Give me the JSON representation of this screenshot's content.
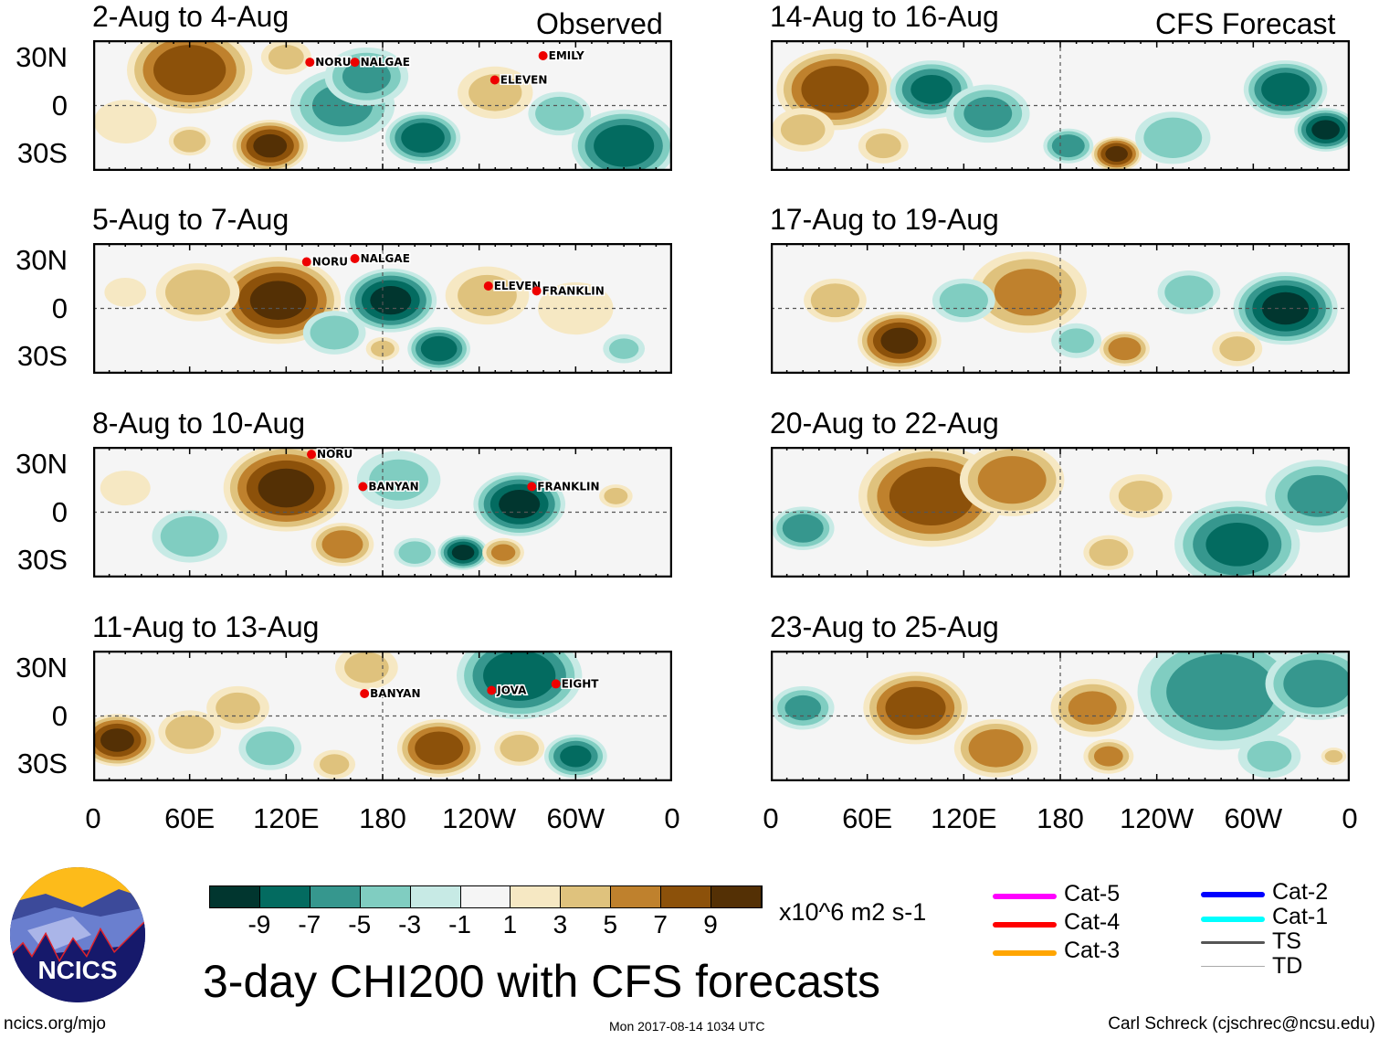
{
  "header": {
    "observed_label": "Observed",
    "forecast_label": "CFS Forecast"
  },
  "lat_labels": [
    "30N",
    "0",
    "30S"
  ],
  "lon_labels": [
    "0",
    "60E",
    "120E",
    "180",
    "120W",
    "60W",
    "0"
  ],
  "panels": [
    {
      "title": "2-Aug to 4-Aug",
      "group": "observed",
      "blobs": [
        [
          60,
          22,
          8,
          30
        ],
        [
          110,
          -25,
          9,
          18
        ],
        [
          60,
          -22,
          4,
          10
        ],
        [
          155,
          0,
          -5,
          25
        ],
        [
          205,
          -20,
          -8,
          18
        ],
        [
          330,
          -25,
          -8,
          25
        ],
        [
          170,
          18,
          -5,
          20
        ],
        [
          250,
          8,
          3,
          18
        ],
        [
          290,
          -5,
          -4,
          15
        ],
        [
          20,
          -10,
          2,
          15
        ],
        [
          120,
          30,
          3,
          12
        ]
      ],
      "storms": [
        {
          "name": "NORU",
          "lon": 137,
          "lat": 28
        },
        {
          "name": "NALGAE",
          "lon": 165,
          "lat": 28
        },
        {
          "name": "EMILY",
          "lon": 282,
          "lat": 32
        },
        {
          "name": "ELEVEN",
          "lon": 252,
          "lat": 17
        }
      ]
    },
    {
      "title": "5-Aug to 7-Aug",
      "group": "observed",
      "blobs": [
        [
          115,
          5,
          9,
          30
        ],
        [
          65,
          10,
          4,
          20
        ],
        [
          185,
          5,
          -9,
          22
        ],
        [
          215,
          -25,
          -8,
          15
        ],
        [
          150,
          -15,
          -4,
          15
        ],
        [
          245,
          8,
          3,
          20
        ],
        [
          300,
          0,
          2,
          18
        ],
        [
          180,
          -25,
          3,
          8
        ],
        [
          20,
          10,
          2,
          10
        ],
        [
          330,
          -25,
          -3,
          10
        ]
      ],
      "storms": [
        {
          "name": "NORU",
          "lon": 135,
          "lat": 30
        },
        {
          "name": "NALGAE",
          "lon": 165,
          "lat": 32
        },
        {
          "name": "ELEVEN",
          "lon": 248,
          "lat": 15
        },
        {
          "name": "FRANKLIN",
          "lon": 278,
          "lat": 12
        }
      ]
    },
    {
      "title": "8-Aug to 10-Aug",
      "group": "observed",
      "blobs": [
        [
          120,
          15,
          9,
          30
        ],
        [
          155,
          -20,
          6,
          15
        ],
        [
          230,
          -25,
          -9,
          12
        ],
        [
          265,
          5,
          -9,
          22
        ],
        [
          255,
          -25,
          5,
          10
        ],
        [
          200,
          -25,
          -4,
          10
        ],
        [
          60,
          -15,
          -4,
          18
        ],
        [
          20,
          15,
          2,
          12
        ],
        [
          325,
          10,
          3,
          8
        ],
        [
          190,
          20,
          -3,
          20
        ]
      ],
      "storms": [
        {
          "name": "NORU",
          "lon": 138,
          "lat": 37
        },
        {
          "name": "BANYAN",
          "lon": 170,
          "lat": 17
        },
        {
          "name": "FRANKLIN",
          "lon": 275,
          "lat": 17
        }
      ]
    },
    {
      "title": "11-Aug to 13-Aug",
      "group": "observed",
      "blobs": [
        [
          15,
          -15,
          9,
          18
        ],
        [
          60,
          -10,
          4,
          15
        ],
        [
          215,
          -20,
          8,
          20
        ],
        [
          265,
          25,
          -8,
          30
        ],
        [
          300,
          -25,
          -7,
          15
        ],
        [
          110,
          -20,
          -4,
          15
        ],
        [
          150,
          -30,
          3,
          10
        ],
        [
          265,
          -20,
          4,
          12
        ],
        [
          90,
          5,
          3,
          15
        ],
        [
          170,
          30,
          3,
          15
        ]
      ],
      "storms": [
        {
          "name": "BANYAN",
          "lon": 171,
          "lat": 15
        },
        {
          "name": "JOVA",
          "lon": 250,
          "lat": 17
        },
        {
          "name": "EIGHT",
          "lon": 290,
          "lat": 21
        }
      ]
    },
    {
      "title": "14-Aug to 16-Aug",
      "group": "forecast",
      "blobs": [
        [
          40,
          10,
          8,
          28
        ],
        [
          100,
          10,
          -7,
          20
        ],
        [
          135,
          -5,
          -5,
          20
        ],
        [
          215,
          -30,
          9,
          12
        ],
        [
          185,
          -25,
          -6,
          12
        ],
        [
          320,
          10,
          -8,
          20
        ],
        [
          345,
          -15,
          -9,
          15
        ],
        [
          250,
          -20,
          -4,
          18
        ],
        [
          20,
          -15,
          3,
          15
        ],
        [
          70,
          -25,
          3,
          12
        ]
      ],
      "storms": []
    },
    {
      "title": "17-Aug to 19-Aug",
      "group": "forecast",
      "blobs": [
        [
          80,
          -20,
          9,
          20
        ],
        [
          40,
          5,
          4,
          15
        ],
        [
          160,
          10,
          5,
          28
        ],
        [
          220,
          -25,
          6,
          12
        ],
        [
          320,
          0,
          -9,
          25
        ],
        [
          260,
          10,
          -4,
          15
        ],
        [
          120,
          5,
          -4,
          15
        ],
        [
          290,
          -25,
          3,
          12
        ],
        [
          190,
          -20,
          -3,
          12
        ]
      ],
      "storms": []
    },
    {
      "title": "20-Aug to 22-Aug",
      "group": "forecast",
      "blobs": [
        [
          100,
          10,
          8,
          35
        ],
        [
          150,
          20,
          6,
          25
        ],
        [
          210,
          -25,
          4,
          12
        ],
        [
          290,
          -20,
          -7,
          30
        ],
        [
          340,
          10,
          -5,
          25
        ],
        [
          20,
          -10,
          -6,
          15
        ],
        [
          230,
          10,
          3,
          15
        ]
      ],
      "storms": []
    },
    {
      "title": "23-Aug to 25-Aug",
      "group": "forecast",
      "blobs": [
        [
          90,
          5,
          8,
          25
        ],
        [
          140,
          -20,
          6,
          20
        ],
        [
          200,
          5,
          5,
          20
        ],
        [
          210,
          -25,
          5,
          12
        ],
        [
          280,
          15,
          -6,
          40
        ],
        [
          340,
          20,
          -6,
          25
        ],
        [
          20,
          5,
          -5,
          15
        ],
        [
          310,
          -25,
          -3,
          15
        ],
        [
          350,
          -25,
          3,
          6
        ]
      ],
      "storms": []
    }
  ],
  "colorbar": {
    "labels": [
      "-9",
      "-7",
      "-5",
      "-3",
      "-1",
      "1",
      "3",
      "5",
      "7",
      "9"
    ],
    "colors": [
      "#01362f",
      "#036b60",
      "#36978e",
      "#80cdc1",
      "#c7eae5",
      "#f5f5f5",
      "#f6e8c3",
      "#dfc27d",
      "#bf812d",
      "#8c510a",
      "#543005"
    ],
    "units": "x10^6 m2 s-1"
  },
  "title": "3-day CHI200 with CFS forecasts",
  "legend": [
    {
      "label": "Cat-5",
      "color": "#ff00ff"
    },
    {
      "label": "Cat-4",
      "color": "#ff0000"
    },
    {
      "label": "Cat-3",
      "color": "#ffa500"
    },
    {
      "label": "Cat-2",
      "color": "#0000ff"
    },
    {
      "label": "Cat-1",
      "color": "#00ffff"
    },
    {
      "label": "TS",
      "color": "#555555"
    },
    {
      "label": "TD",
      "color": "#aaaaaa"
    }
  ],
  "logo": {
    "text": "NCICS"
  },
  "footer": {
    "left": "ncics.org/mjo",
    "center": "Mon 2017-08-14 1034 UTC",
    "right": "Carl Schreck (cjschrec@ncsu.edu)"
  }
}
